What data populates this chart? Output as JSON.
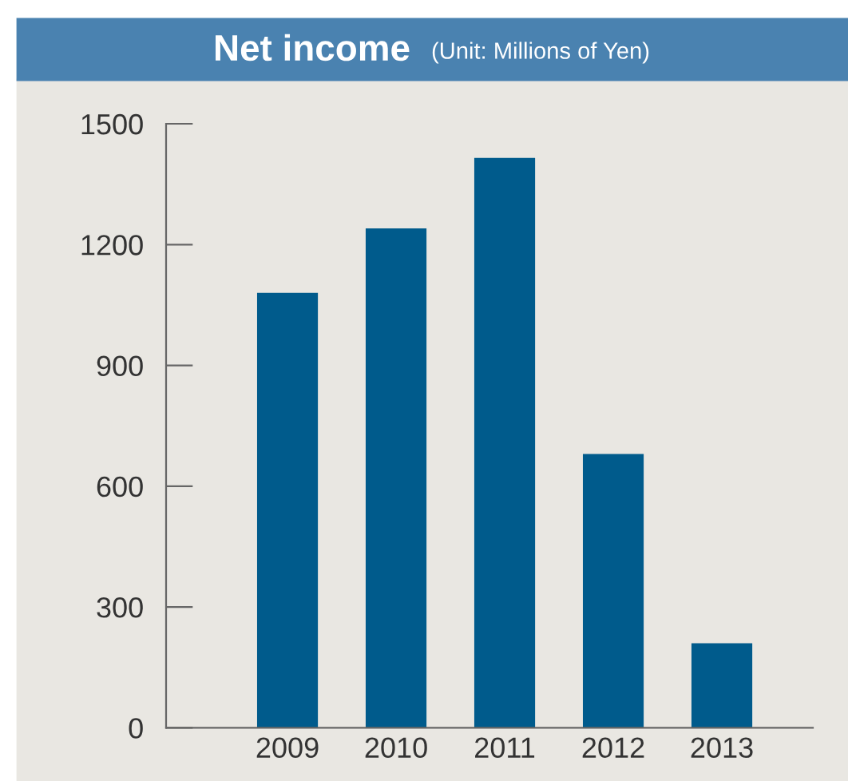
{
  "chart_data": {
    "type": "bar",
    "title": "Net income",
    "subtitle": "(Unit: Millions of Yen)",
    "categories": [
      "2009",
      "2010",
      "2011",
      "2012",
      "2013"
    ],
    "values": [
      1080,
      1240,
      1415,
      680,
      210
    ],
    "color": "#005b8c",
    "ylim": [
      0,
      1500
    ],
    "yticks": [
      0,
      300,
      600,
      900,
      1200,
      1500
    ],
    "grid": false
  }
}
